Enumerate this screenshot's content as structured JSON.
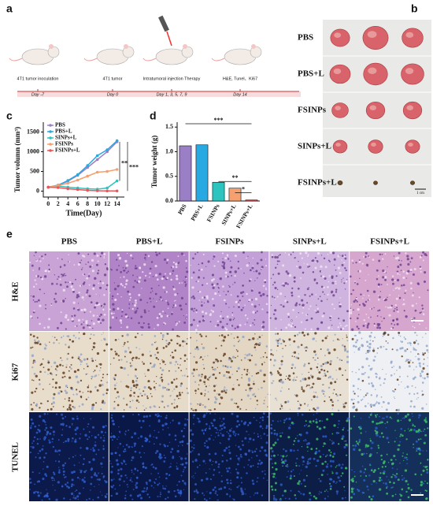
{
  "panel_labels": [
    "a",
    "b",
    "c",
    "d",
    "e"
  ],
  "timeline": {
    "steps": [
      {
        "label": "4T1 tumor inoculation",
        "day": "Day -7"
      },
      {
        "label": "4T1 tumor",
        "day": "Day 0"
      },
      {
        "label": "Intratumoral injection Therapy",
        "day": "Day 1, 3, 5, 7, 9"
      },
      {
        "label": "H&E, Tunel、Ki67",
        "day": "Day 14"
      }
    ]
  },
  "photos": {
    "rows": [
      "PBS",
      "PBS+L",
      "FSINPs",
      "SINPs+L",
      "FSINPs+L"
    ],
    "scale": "1 cm"
  },
  "chart_data": [
    {
      "type": "line",
      "x_label": "Time(Day)",
      "y_label": "Tumor volumn (mm³)",
      "x": [
        0,
        2,
        4,
        6,
        8,
        10,
        12,
        14
      ],
      "xlim": [
        -1,
        15.5
      ],
      "xticks": [
        0,
        2,
        4,
        6,
        8,
        10,
        12,
        14
      ],
      "ylim": [
        -150,
        1750
      ],
      "yticks": [
        0,
        500,
        1000,
        1500
      ],
      "series": [
        {
          "name": "PBS",
          "color": "#9b7fc6",
          "values": [
            100,
            150,
            250,
            400,
            600,
            800,
            1000,
            1250
          ]
        },
        {
          "name": "PBS+L",
          "color": "#29a9e1",
          "values": [
            100,
            150,
            270,
            420,
            650,
            900,
            1050,
            1280
          ]
        },
        {
          "name": "SINPs+L",
          "color": "#2cc4bf",
          "values": [
            100,
            130,
            100,
            80,
            60,
            50,
            80,
            260
          ]
        },
        {
          "name": "FSINPs",
          "color": "#f5a06e",
          "values": [
            100,
            140,
            200,
            280,
            380,
            480,
            500,
            550
          ]
        },
        {
          "name": "FSINPs+L",
          "color": "#e8565a",
          "values": [
            100,
            90,
            60,
            40,
            20,
            10,
            5,
            5
          ]
        }
      ],
      "annotations": [
        "**",
        "***"
      ]
    },
    {
      "type": "bar",
      "y_label": "Tumor weight (g)",
      "categories": [
        "PBS",
        "PBS+L",
        "FSINPs",
        "SINPs+L",
        "FSINPs+L"
      ],
      "values": [
        1.12,
        1.14,
        0.38,
        0.26,
        0.02
      ],
      "colors": [
        "#9b7fc6",
        "#29a9e1",
        "#2cc4bf",
        "#f5a06e",
        "#e8565a"
      ],
      "ylim": [
        0,
        1.6
      ],
      "yticks": [
        {
          "value": 0,
          "label": "0.0"
        },
        0.5,
        {
          "value": 1,
          "label": "1.0"
        },
        1.5
      ],
      "annotations": [
        "***",
        "**",
        "*"
      ]
    }
  ],
  "histology": {
    "columns": [
      "PBS",
      "PBS+L",
      "FSINPs",
      "SINPs+L",
      "FSINPs+L"
    ],
    "rows": [
      "H&E",
      "Ki67",
      "TUNEL"
    ]
  }
}
